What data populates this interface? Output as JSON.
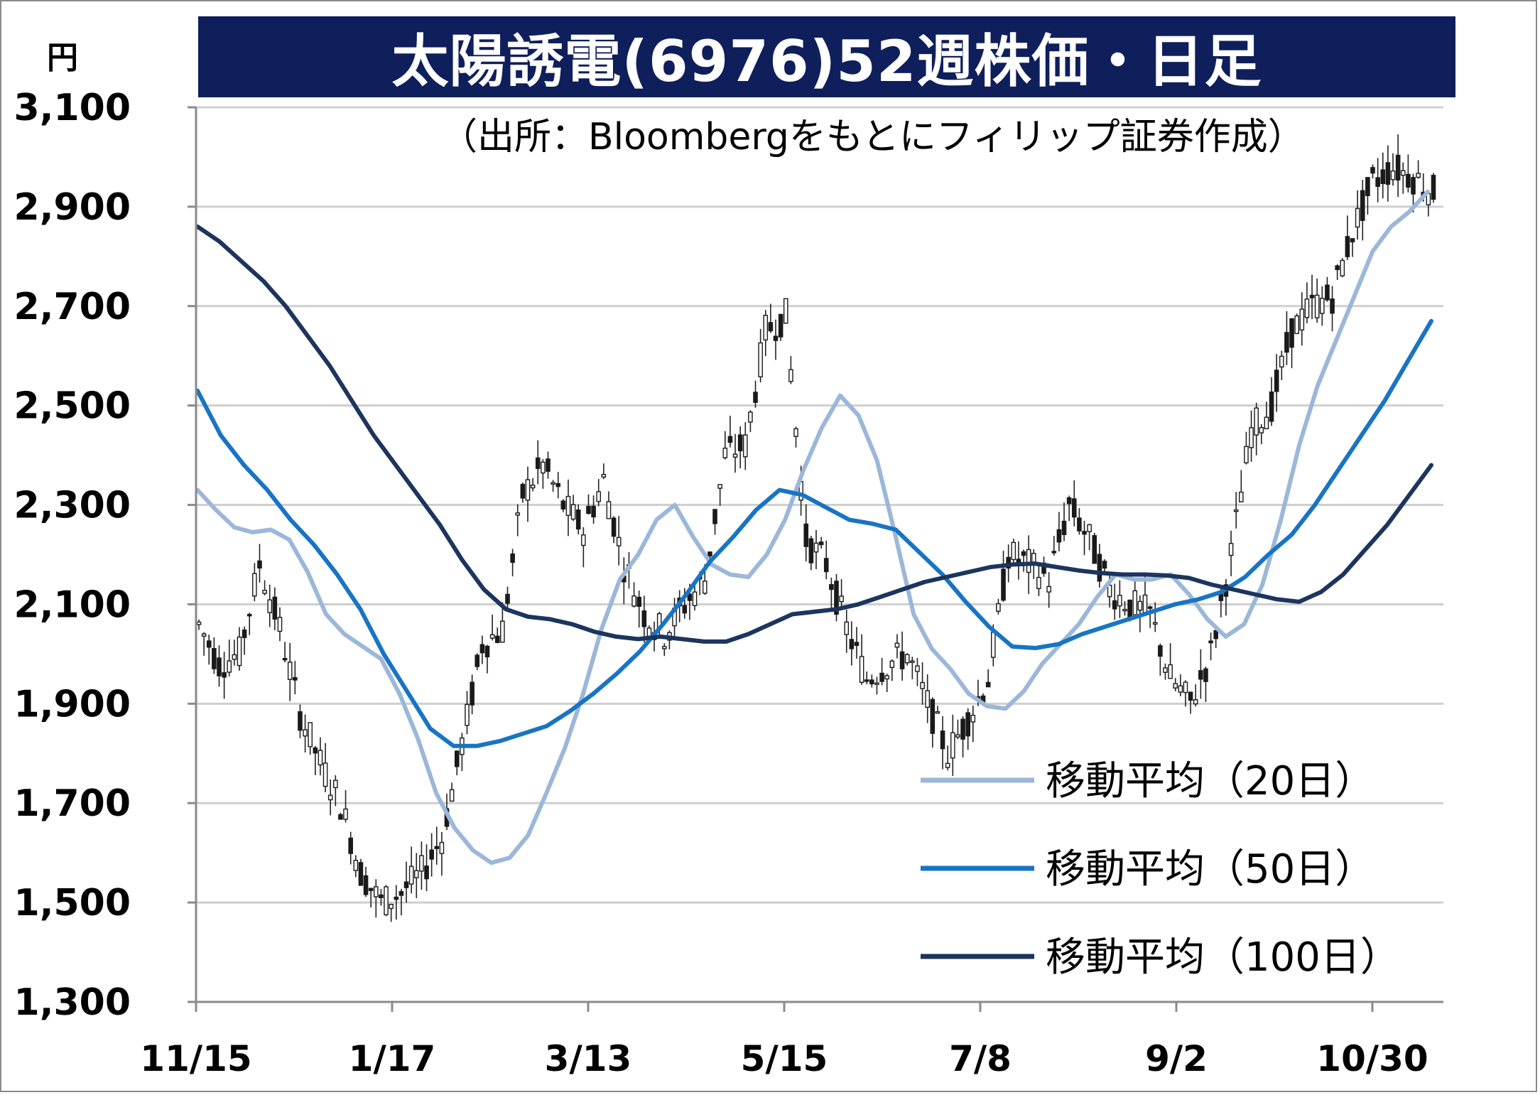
{
  "title": "太陽誘電(6976)52週株価・日足",
  "subtitle": "（出所：Bloombergをもとにフィリップ証券作成）",
  "unit": "円",
  "chart_data": {
    "type": "candlestick",
    "ylim": [
      1300,
      3100
    ],
    "yticks": [
      "3,100",
      "2,900",
      "2,700",
      "2,500",
      "2,300",
      "2,100",
      "1,900",
      "1,700",
      "1,500",
      "1,300"
    ],
    "xticks": [
      "11/15",
      "1/17",
      "3/13",
      "5/15",
      "7/8",
      "9/2",
      "10/30"
    ],
    "grid": true,
    "legend_position": "bottom-right",
    "series": [
      {
        "name": "移動平均（20日）",
        "color": "#9bb7d9",
        "values": [
          2330,
          2290,
          2255,
          2245,
          2250,
          2230,
          2165,
          2080,
          2040,
          2015,
          1990,
          1920,
          1830,
          1720,
          1650,
          1605,
          1580,
          1590,
          1635,
          1720,
          1810,
          1920,
          2050,
          2150,
          2200,
          2270,
          2300,
          2235,
          2180,
          2160,
          2155,
          2200,
          2270,
          2370,
          2455,
          2520,
          2480,
          2390,
          2240,
          2080,
          2010,
          1970,
          1920,
          1895,
          1890,
          1925,
          1980,
          2020,
          2060,
          2115,
          2160,
          2150,
          2150,
          2160,
          2120,
          2070,
          2035,
          2060,
          2140,
          2270,
          2420,
          2540,
          2630,
          2720,
          2810,
          2860,
          2890,
          2930
        ]
      },
      {
        "name": "移動平均（50日）",
        "color": "#1874c4",
        "values": [
          2530,
          2440,
          2380,
          2330,
          2270,
          2220,
          2160,
          2090,
          2000,
          1925,
          1850,
          1815,
          1815,
          1825,
          1840,
          1855,
          1885,
          1920,
          1960,
          2005,
          2060,
          2120,
          2185,
          2235,
          2290,
          2330,
          2320,
          2295,
          2270,
          2262,
          2250,
          2205,
          2160,
          2105,
          2055,
          2015,
          2012,
          2020,
          2040,
          2055,
          2070,
          2085,
          2100,
          2110,
          2125,
          2155,
          2200,
          2240,
          2300,
          2370,
          2440,
          2510,
          2590,
          2670
        ]
      },
      {
        "name": "移動平均（100日）",
        "color": "#1b355e",
        "values": [
          2860,
          2830,
          2790,
          2750,
          2700,
          2640,
          2580,
          2510,
          2440,
          2380,
          2320,
          2260,
          2190,
          2130,
          2090,
          2075,
          2070,
          2060,
          2045,
          2035,
          2030,
          2035,
          2030,
          2025,
          2025,
          2040,
          2060,
          2080,
          2085,
          2090,
          2100,
          2115,
          2130,
          2145,
          2155,
          2165,
          2175,
          2180,
          2182,
          2175,
          2168,
          2163,
          2160,
          2160,
          2158,
          2153,
          2140,
          2130,
          2120,
          2110,
          2105,
          2125,
          2160,
          2210,
          2260,
          2320,
          2380
        ]
      }
    ]
  }
}
